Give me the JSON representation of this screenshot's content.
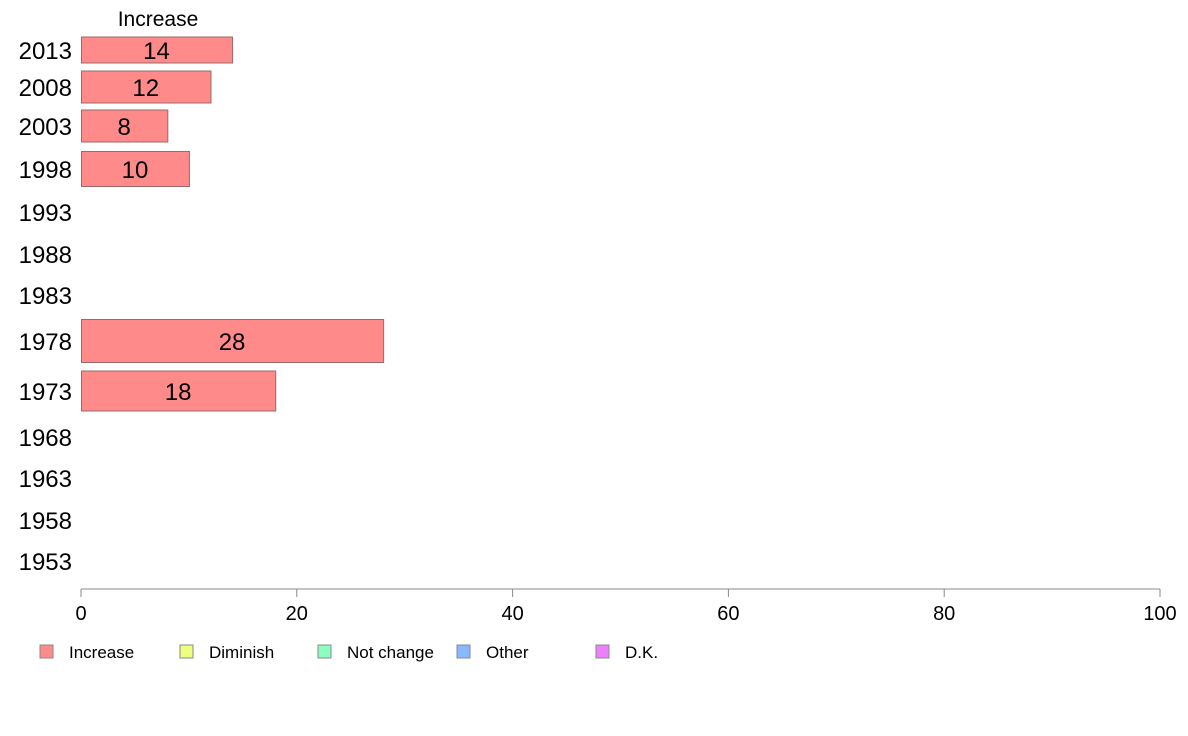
{
  "chart_data": {
    "type": "bar",
    "orientation": "horizontal",
    "series_title": "Increase",
    "categories": [
      "2013",
      "2008",
      "2003",
      "1998",
      "1993",
      "1988",
      "1983",
      "1978",
      "1973",
      "1968",
      "1963",
      "1958",
      "1953"
    ],
    "series": [
      {
        "name": "Increase",
        "values": [
          14,
          12,
          8,
          10,
          null,
          null,
          null,
          28,
          18,
          null,
          null,
          null,
          null
        ]
      }
    ],
    "data_labels": [
      "14",
      "12",
      "8",
      "10",
      "",
      "",
      "",
      "28",
      "18",
      "",
      "",
      "",
      ""
    ],
    "xlim": [
      0,
      100
    ],
    "xticks": [
      "0",
      "20",
      "40",
      "60",
      "80",
      "100"
    ],
    "grid": false,
    "legend": {
      "placement": "bottom",
      "entries": [
        {
          "label": "Increase",
          "color": "#ff8a8a"
        },
        {
          "label": "Diminish",
          "color": "#eeff80"
        },
        {
          "label": "Not change",
          "color": "#8affc0"
        },
        {
          "label": "Other",
          "color": "#8ab8ff"
        },
        {
          "label": "D.K.",
          "color": "#ee80ff"
        }
      ]
    },
    "colors": {
      "bar": "#ff8a8a",
      "bar_border": "#9a6a6a",
      "axis": "#888888"
    }
  }
}
